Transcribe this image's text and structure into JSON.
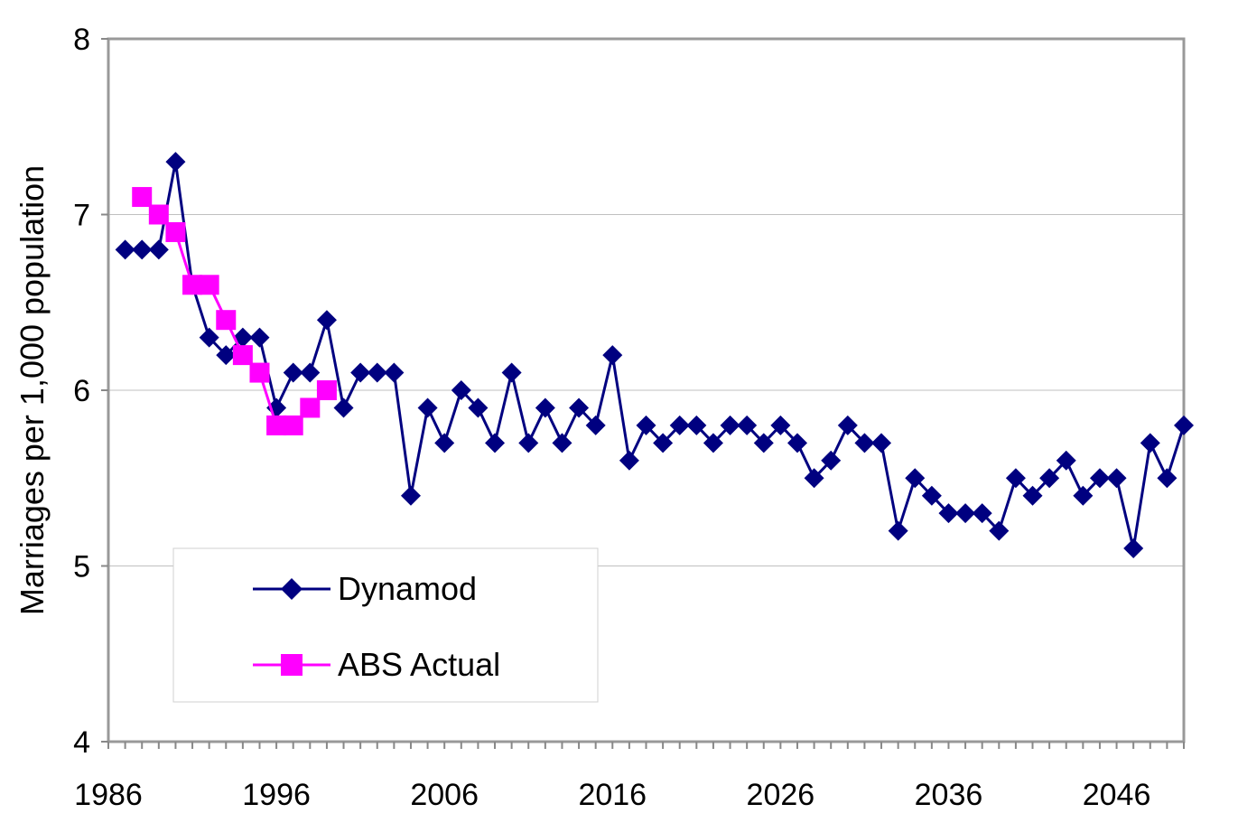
{
  "chart_data": {
    "type": "line",
    "title": "",
    "xlabel": "",
    "ylabel": "Marriages per 1,000  population",
    "xlim": [
      1986,
      2050
    ],
    "ylim": [
      4,
      8
    ],
    "x_ticks": [
      "1986",
      "1996",
      "2006",
      "2016",
      "2026",
      "2036",
      "2046"
    ],
    "y_ticks": [
      "4",
      "5",
      "6",
      "7",
      "8"
    ],
    "grid": true,
    "legend_position": "bottom-left",
    "series": [
      {
        "name": "Dynamod",
        "color": "#000080",
        "marker": "diamond",
        "x": [
          1987,
          1988,
          1989,
          1990,
          1991,
          1992,
          1993,
          1994,
          1995,
          1996,
          1997,
          1998,
          1999,
          2000,
          2001,
          2002,
          2003,
          2004,
          2005,
          2006,
          2007,
          2008,
          2009,
          2010,
          2011,
          2012,
          2013,
          2014,
          2015,
          2016,
          2017,
          2018,
          2019,
          2020,
          2021,
          2022,
          2023,
          2024,
          2025,
          2026,
          2027,
          2028,
          2029,
          2030,
          2031,
          2032,
          2033,
          2034,
          2035,
          2036,
          2037,
          2038,
          2039,
          2040,
          2041,
          2042,
          2043,
          2044,
          2045,
          2046,
          2047,
          2048,
          2049,
          2050
        ],
        "y": [
          6.8,
          6.8,
          6.8,
          7.3,
          6.6,
          6.3,
          6.2,
          6.3,
          6.3,
          5.9,
          6.1,
          6.1,
          6.4,
          5.9,
          6.1,
          6.1,
          6.1,
          5.4,
          5.9,
          5.7,
          6.0,
          5.9,
          5.7,
          6.1,
          5.7,
          5.9,
          5.7,
          5.9,
          5.8,
          6.2,
          5.6,
          5.8,
          5.7,
          5.8,
          5.8,
          5.7,
          5.8,
          5.8,
          5.7,
          5.8,
          5.7,
          5.5,
          5.6,
          5.8,
          5.7,
          5.7,
          5.2,
          5.5,
          5.4,
          5.3,
          5.3,
          5.3,
          5.2,
          5.5,
          5.4,
          5.5,
          5.6,
          5.4,
          5.5,
          5.5,
          5.1,
          5.7,
          5.5,
          5.8
        ]
      },
      {
        "name": "ABS Actual",
        "color": "#FF00FF",
        "marker": "square",
        "x": [
          1988,
          1989,
          1990,
          1991,
          1992,
          1993,
          1994,
          1995,
          1996,
          1997,
          1998,
          1999
        ],
        "y": [
          7.1,
          7.0,
          6.9,
          6.6,
          6.6,
          6.4,
          6.2,
          6.1,
          5.8,
          5.8,
          5.9,
          6.0
        ]
      }
    ]
  }
}
